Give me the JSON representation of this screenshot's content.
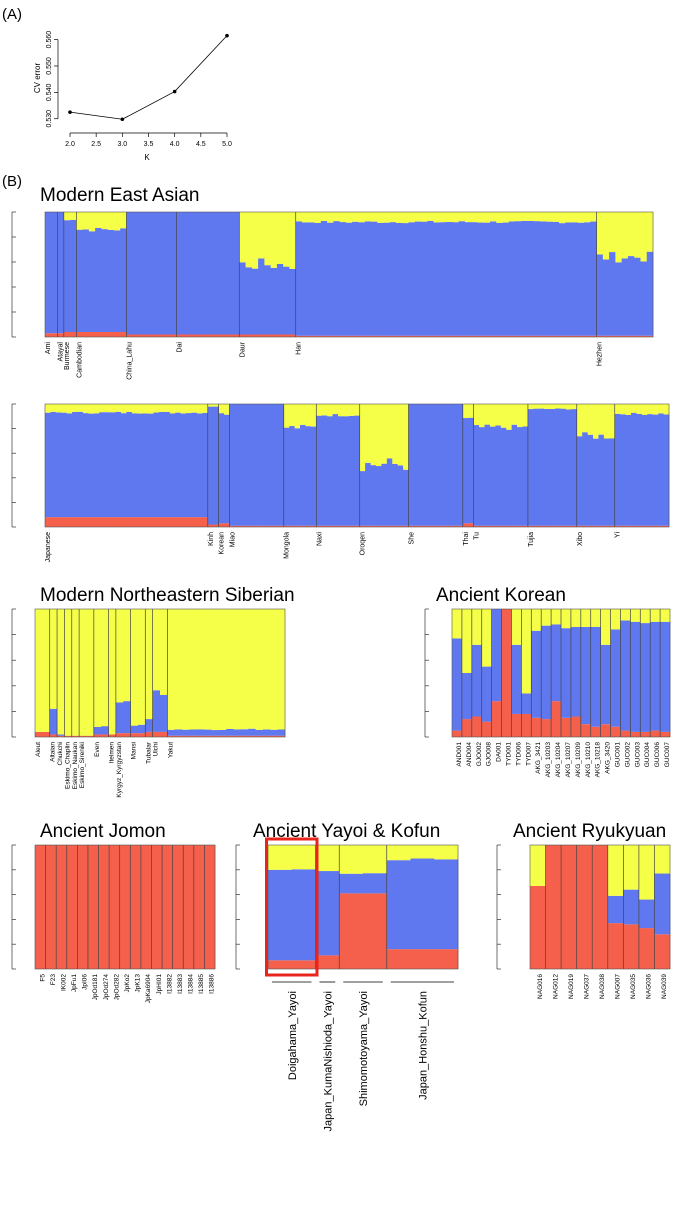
{
  "colors": {
    "yellow": "#f5ff47",
    "blue": "#5f78f0",
    "red": "#f4604b",
    "border": "#505050",
    "highlight": "#e8251c"
  },
  "chart_data": [
    {
      "type": "line",
      "panel_label": "(A)",
      "xlabel": "K",
      "ylabel": "CV error",
      "x": [
        2,
        3,
        4,
        5
      ],
      "y": [
        0.5325,
        0.5298,
        0.5403,
        0.5615
      ],
      "xlim": [
        2.0,
        5.0
      ],
      "ylim": [
        0.528,
        0.5625
      ],
      "xticks": [
        "2.0",
        "2.5",
        "3.0",
        "3.5",
        "4.0",
        "4.5",
        "5.0"
      ],
      "yticks": [
        "0.530",
        "0.540",
        "0.550",
        "0.560"
      ],
      "ytick_values": [
        0.53,
        0.54,
        0.55,
        0.56
      ]
    },
    {
      "type": "bar",
      "panel_label": "(B)",
      "stacked": true,
      "components": [
        "red",
        "blue",
        "yellow"
      ],
      "panels": [
        {
          "id": "east-asian-1",
          "title": "Modern East Asian",
          "components": [
            "red",
            "blue",
            "yellow"
          ],
          "groups": [
            {
              "label": "Ami",
              "n": 2,
              "red": 0.03,
              "blue": 0.97,
              "yellow": 0.0
            },
            {
              "label": "Atayal",
              "n": 1,
              "red": 0.03,
              "blue": 0.97,
              "yellow": 0.0
            },
            {
              "label": "Burmese",
              "n": 2,
              "red": 0.04,
              "blue": 0.9,
              "yellow": 0.06
            },
            {
              "label": "Cambodian",
              "n": 8,
              "red": 0.04,
              "blue": 0.82,
              "yellow": 0.14
            },
            {
              "label": "China_Lahu",
              "n": 8,
              "red": 0.02,
              "blue": 0.98,
              "yellow": 0.0
            },
            {
              "label": "Dai",
              "n": 10,
              "red": 0.02,
              "blue": 0.98,
              "yellow": 0.0
            },
            {
              "label": "Daur",
              "n": 9,
              "red": 0.02,
              "blue": 0.56,
              "yellow": 0.42
            },
            {
              "label": "Han",
              "n": 48,
              "red": 0.01,
              "blue": 0.91,
              "yellow": 0.08
            },
            {
              "label": "Hezhen",
              "n": 9,
              "red": 0.01,
              "blue": 0.63,
              "yellow": 0.36
            }
          ]
        },
        {
          "id": "east-asian-2",
          "components": [
            "red",
            "blue",
            "yellow"
          ],
          "groups": [
            {
              "label": "Japanese",
              "n": 30,
              "red": 0.08,
              "blue": 0.85,
              "yellow": 0.07
            },
            {
              "label": "Kinh",
              "n": 2,
              "red": 0.02,
              "blue": 0.96,
              "yellow": 0.02
            },
            {
              "label": "Korean",
              "n": 2,
              "red": 0.03,
              "blue": 0.89,
              "yellow": 0.08
            },
            {
              "label": "Miao",
              "n": 10,
              "red": 0.01,
              "blue": 0.99,
              "yellow": 0.0
            },
            {
              "label": "Mongola",
              "n": 6,
              "red": 0.01,
              "blue": 0.8,
              "yellow": 0.19
            },
            {
              "label": "Naxi",
              "n": 8,
              "red": 0.01,
              "blue": 0.9,
              "yellow": 0.09
            },
            {
              "label": "Oroqen",
              "n": 9,
              "red": 0.01,
              "blue": 0.5,
              "yellow": 0.49
            },
            {
              "label": "She",
              "n": 10,
              "red": 0.01,
              "blue": 0.99,
              "yellow": 0.0
            },
            {
              "label": "Thai",
              "n": 2,
              "red": 0.03,
              "blue": 0.85,
              "yellow": 0.12
            },
            {
              "label": "Tu",
              "n": 10,
              "red": 0.01,
              "blue": 0.8,
              "yellow": 0.19
            },
            {
              "label": "Tujia",
              "n": 9,
              "red": 0.01,
              "blue": 0.95,
              "yellow": 0.04
            },
            {
              "label": "Xibo",
              "n": 7,
              "red": 0.01,
              "blue": 0.73,
              "yellow": 0.26
            },
            {
              "label": "Yi",
              "n": 10,
              "red": 0.01,
              "blue": 0.91,
              "yellow": 0.08
            }
          ]
        },
        {
          "id": "siberian",
          "title": "Modern Northeastern Siberian",
          "components": [
            "red",
            "blue",
            "yellow"
          ],
          "groups": [
            {
              "label": "Aleut",
              "n": 2,
              "red": 0.04,
              "blue": 0.0,
              "yellow": 0.96
            },
            {
              "label": "Altaian",
              "n": 1,
              "red": 0.02,
              "blue": 0.2,
              "yellow": 0.78
            },
            {
              "label": "Chukchi",
              "n": 1,
              "red": 0.01,
              "blue": 0.01,
              "yellow": 0.98
            },
            {
              "label": "Eskimo_Chaplin",
              "n": 1,
              "red": 0.01,
              "blue": 0.0,
              "yellow": 0.99
            },
            {
              "label": "Eskimo_Naukan",
              "n": 1,
              "red": 0.01,
              "blue": 0.0,
              "yellow": 0.99
            },
            {
              "label": "Eskimo_Sireniki",
              "n": 2,
              "red": 0.01,
              "blue": 0.0,
              "yellow": 0.99
            },
            {
              "label": "Even",
              "n": 2,
              "red": 0.02,
              "blue": 0.06,
              "yellow": 0.92
            },
            {
              "label": "Itelmen",
              "n": 1,
              "red": 0.02,
              "blue": 0.0,
              "yellow": 0.98
            },
            {
              "label": "Kyrgyz_Kyrgyzstan",
              "n": 2,
              "red": 0.03,
              "blue": 0.26,
              "yellow": 0.71
            },
            {
              "label": "Mansi",
              "n": 2,
              "red": 0.03,
              "blue": 0.06,
              "yellow": 0.91
            },
            {
              "label": "Tubalar",
              "n": 1,
              "red": 0.04,
              "blue": 0.1,
              "yellow": 0.86
            },
            {
              "label": "Ulchi",
              "n": 2,
              "red": 0.04,
              "blue": 0.32,
              "yellow": 0.64
            },
            {
              "label": "Yakut",
              "n": 16,
              "red": 0.01,
              "blue": 0.05,
              "yellow": 0.94
            }
          ]
        },
        {
          "id": "korean",
          "title": "Ancient Korean",
          "components": [
            "red",
            "blue",
            "yellow"
          ],
          "groups": [
            {
              "label": "AND001",
              "n": 1,
              "red": 0.05,
              "blue": 0.72,
              "yellow": 0.23
            },
            {
              "label": "AND004",
              "n": 1,
              "red": 0.14,
              "blue": 0.36,
              "yellow": 0.5
            },
            {
              "label": "GJO002",
              "n": 1,
              "red": 0.16,
              "blue": 0.56,
              "yellow": 0.28
            },
            {
              "label": "GJO008",
              "n": 1,
              "red": 0.12,
              "blue": 0.43,
              "yellow": 0.45
            },
            {
              "label": "DA001",
              "n": 1,
              "red": 0.28,
              "blue": 0.72,
              "yellow": 0.0
            },
            {
              "label": "TYD001",
              "n": 1,
              "red": 1.0,
              "blue": 0.0,
              "yellow": 0.0
            },
            {
              "label": "TYD006",
              "n": 1,
              "red": 0.18,
              "blue": 0.54,
              "yellow": 0.28
            },
            {
              "label": "TYD007",
              "n": 1,
              "red": 0.18,
              "blue": 0.16,
              "yellow": 0.66
            },
            {
              "label": "AKG_3421",
              "n": 1,
              "red": 0.15,
              "blue": 0.68,
              "yellow": 0.17
            },
            {
              "label": "AKG_10203",
              "n": 1,
              "red": 0.14,
              "blue": 0.73,
              "yellow": 0.13
            },
            {
              "label": "AKG_10204",
              "n": 1,
              "red": 0.28,
              "blue": 0.6,
              "yellow": 0.12
            },
            {
              "label": "AKG_10207",
              "n": 1,
              "red": 0.15,
              "blue": 0.7,
              "yellow": 0.15
            },
            {
              "label": "AKG_10209",
              "n": 1,
              "red": 0.16,
              "blue": 0.7,
              "yellow": 0.14
            },
            {
              "label": "AKG_10210",
              "n": 1,
              "red": 0.1,
              "blue": 0.76,
              "yellow": 0.14
            },
            {
              "label": "AKG_10218",
              "n": 1,
              "red": 0.08,
              "blue": 0.78,
              "yellow": 0.14
            },
            {
              "label": "AKG_3420",
              "n": 1,
              "red": 0.1,
              "blue": 0.62,
              "yellow": 0.28
            },
            {
              "label": "GUC001",
              "n": 1,
              "red": 0.08,
              "blue": 0.76,
              "yellow": 0.16
            },
            {
              "label": "GUC002",
              "n": 1,
              "red": 0.05,
              "blue": 0.86,
              "yellow": 0.09
            },
            {
              "label": "GUC003",
              "n": 1,
              "red": 0.04,
              "blue": 0.86,
              "yellow": 0.1
            },
            {
              "label": "GUC004",
              "n": 1,
              "red": 0.04,
              "blue": 0.85,
              "yellow": 0.11
            },
            {
              "label": "GUC006",
              "n": 1,
              "red": 0.05,
              "blue": 0.85,
              "yellow": 0.1
            },
            {
              "label": "GUC007",
              "n": 1,
              "red": 0.04,
              "blue": 0.86,
              "yellow": 0.1
            }
          ]
        },
        {
          "id": "jomon",
          "title": "Ancient Jomon",
          "components": [
            "red",
            "blue",
            "yellow"
          ],
          "groups": [
            {
              "label": "F5",
              "n": 1,
              "red": 1.0,
              "blue": 0.0,
              "yellow": 0.0
            },
            {
              "label": "F23",
              "n": 1,
              "red": 1.0,
              "blue": 0.0,
              "yellow": 0.0
            },
            {
              "label": "IK002",
              "n": 1,
              "red": 1.0,
              "blue": 0.0,
              "yellow": 0.0
            },
            {
              "label": "JpFu1",
              "n": 1,
              "red": 1.0,
              "blue": 0.0,
              "yellow": 0.0
            },
            {
              "label": "JpI06",
              "n": 1,
              "red": 1.0,
              "blue": 0.0,
              "yellow": 0.0
            },
            {
              "label": "JpOd181",
              "n": 1,
              "red": 1.0,
              "blue": 0.0,
              "yellow": 0.0
            },
            {
              "label": "JpOd274",
              "n": 1,
              "red": 1.0,
              "blue": 0.0,
              "yellow": 0.0
            },
            {
              "label": "JpOd282",
              "n": 1,
              "red": 1.0,
              "blue": 0.0,
              "yellow": 0.0
            },
            {
              "label": "JpKo2",
              "n": 1,
              "red": 1.0,
              "blue": 0.0,
              "yellow": 0.0
            },
            {
              "label": "JpK13",
              "n": 1,
              "red": 1.0,
              "blue": 0.0,
              "yellow": 0.0
            },
            {
              "label": "JpKa6904",
              "n": 1,
              "red": 1.0,
              "blue": 0.0,
              "yellow": 0.0
            },
            {
              "label": "JpHI01",
              "n": 1,
              "red": 1.0,
              "blue": 0.0,
              "yellow": 0.0
            },
            {
              "label": "I13882",
              "n": 1,
              "red": 1.0,
              "blue": 0.0,
              "yellow": 0.0
            },
            {
              "label": "I13883",
              "n": 1,
              "red": 1.0,
              "blue": 0.0,
              "yellow": 0.0
            },
            {
              "label": "I13884",
              "n": 1,
              "red": 1.0,
              "blue": 0.0,
              "yellow": 0.0
            },
            {
              "label": "I13885",
              "n": 1,
              "red": 1.0,
              "blue": 0.0,
              "yellow": 0.0
            },
            {
              "label": "I13886",
              "n": 1,
              "red": 1.0,
              "blue": 0.0,
              "yellow": 0.0
            }
          ]
        },
        {
          "id": "yayoi",
          "title": "Ancient Yayoi & Kofun",
          "components": [
            "red",
            "blue",
            "yellow"
          ],
          "highlight": "Doigahama_Yayoi",
          "groups": [
            {
              "label": "Doigahama_Yayoi",
              "n": 2,
              "red": 0.07,
              "blue": 0.75,
              "yellow": 0.18
            },
            {
              "label": "Japan_KumaNishioda_Yayoi",
              "n": 1,
              "red": 0.11,
              "blue": 0.68,
              "yellow": 0.21
            },
            {
              "label": "Shimomotoyama_Yayoi",
              "n": 2,
              "red": 0.61,
              "blue": 0.15,
              "yellow": 0.24
            },
            {
              "label": "Japan_Honshu_Kofun",
              "n": 3,
              "red": 0.16,
              "blue": 0.73,
              "yellow": 0.11
            }
          ]
        },
        {
          "id": "ryukyuan",
          "title": "Ancient Ryukyuan",
          "components": [
            "red",
            "blue",
            "yellow"
          ],
          "groups": [
            {
              "label": "NAG016",
              "n": 1,
              "red": 0.67,
              "blue": 0.0,
              "yellow": 0.33
            },
            {
              "label": "NAG012",
              "n": 1,
              "red": 1.0,
              "blue": 0.0,
              "yellow": 0.0
            },
            {
              "label": "NAG019",
              "n": 1,
              "red": 1.0,
              "blue": 0.0,
              "yellow": 0.0
            },
            {
              "label": "NAG037",
              "n": 1,
              "red": 1.0,
              "blue": 0.0,
              "yellow": 0.0
            },
            {
              "label": "NAG038",
              "n": 1,
              "red": 1.0,
              "blue": 0.0,
              "yellow": 0.0
            },
            {
              "label": "NAG007",
              "n": 1,
              "red": 0.37,
              "blue": 0.22,
              "yellow": 0.41
            },
            {
              "label": "NAG035",
              "n": 1,
              "red": 0.36,
              "blue": 0.28,
              "yellow": 0.36
            },
            {
              "label": "NAG036",
              "n": 1,
              "red": 0.33,
              "blue": 0.23,
              "yellow": 0.44
            },
            {
              "label": "NAG039",
              "n": 1,
              "red": 0.28,
              "blue": 0.49,
              "yellow": 0.23
            }
          ]
        }
      ]
    }
  ]
}
